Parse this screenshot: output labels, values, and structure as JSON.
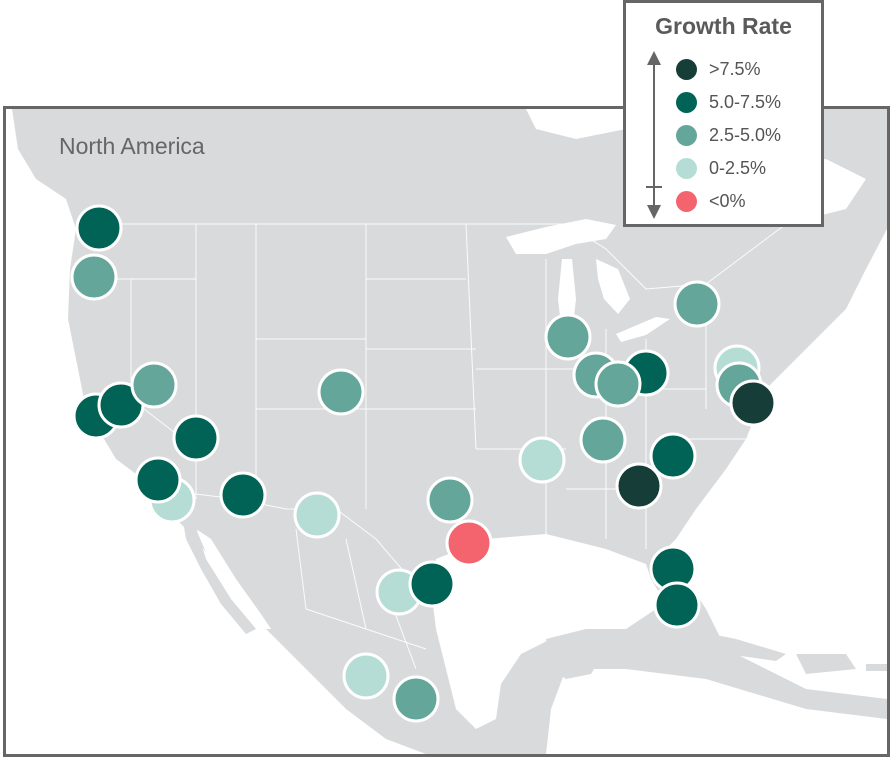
{
  "map": {
    "region_label": "North America",
    "land_color": "#d9dadb",
    "water_color": "#ffffff",
    "marker_border": "#ffffff"
  },
  "legend": {
    "title": "Growth Rate",
    "items": [
      {
        "key": "very-high",
        "label": ">7.5%",
        "color": "#173d38"
      },
      {
        "key": "high",
        "label": "5.0-7.5%",
        "color": "#006355"
      },
      {
        "key": "mid",
        "label": "2.5-5.0%",
        "color": "#65a69b"
      },
      {
        "key": "low",
        "label": "0-2.5%",
        "color": "#b5ddd5"
      },
      {
        "key": "negative",
        "label": "<0%",
        "color": "#f4646f"
      }
    ]
  },
  "markers": [
    {
      "category": "high"
    },
    {
      "category": "mid"
    },
    {
      "category": "high"
    },
    {
      "category": "high"
    },
    {
      "category": "mid"
    },
    {
      "category": "high"
    },
    {
      "category": "low"
    },
    {
      "category": "high"
    },
    {
      "category": "high"
    },
    {
      "category": "mid"
    },
    {
      "category": "low"
    },
    {
      "category": "mid"
    },
    {
      "category": "negative"
    },
    {
      "category": "low"
    },
    {
      "category": "high"
    },
    {
      "category": "low"
    },
    {
      "category": "mid"
    },
    {
      "category": "mid"
    },
    {
      "category": "mid"
    },
    {
      "category": "mid"
    },
    {
      "category": "high"
    },
    {
      "category": "mid"
    },
    {
      "category": "low"
    },
    {
      "category": "mid"
    },
    {
      "category": "very-high"
    },
    {
      "category": "mid"
    },
    {
      "category": "low"
    },
    {
      "category": "high"
    },
    {
      "category": "very-high"
    },
    {
      "category": "high"
    },
    {
      "category": "high"
    }
  ]
}
